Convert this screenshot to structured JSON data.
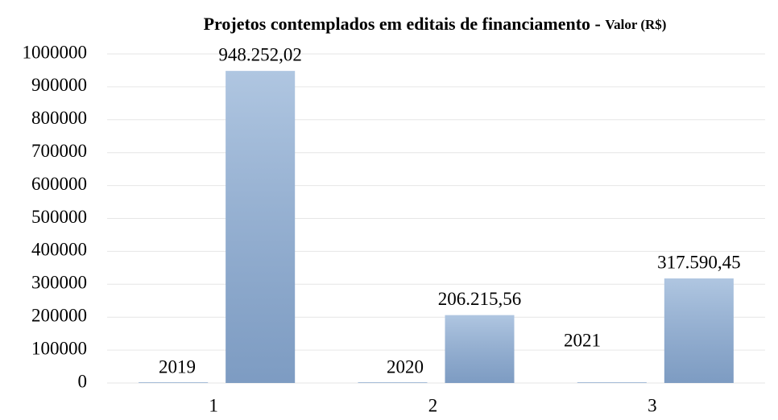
{
  "chart_data": {
    "type": "bar",
    "title": "Projetos contemplados em editais de financiamento - ",
    "subtitle": "Valor (R$)",
    "categories": [
      "1",
      "2",
      "3"
    ],
    "series": [
      {
        "color": "#95b3d7",
        "values": [
          2019,
          2020,
          2021
        ]
      },
      {
        "color": "#95b3d7",
        "values": [
          948252.02,
          206215.56,
          317590.45
        ],
        "value_labels": [
          "948.252,02",
          "206.215,56",
          "317.590,45"
        ]
      }
    ],
    "ylim": [
      0,
      1000000
    ],
    "yticks": [
      0,
      100000,
      200000,
      300000,
      400000,
      500000,
      600000,
      700000,
      800000,
      900000,
      1000000
    ],
    "grid": true
  }
}
